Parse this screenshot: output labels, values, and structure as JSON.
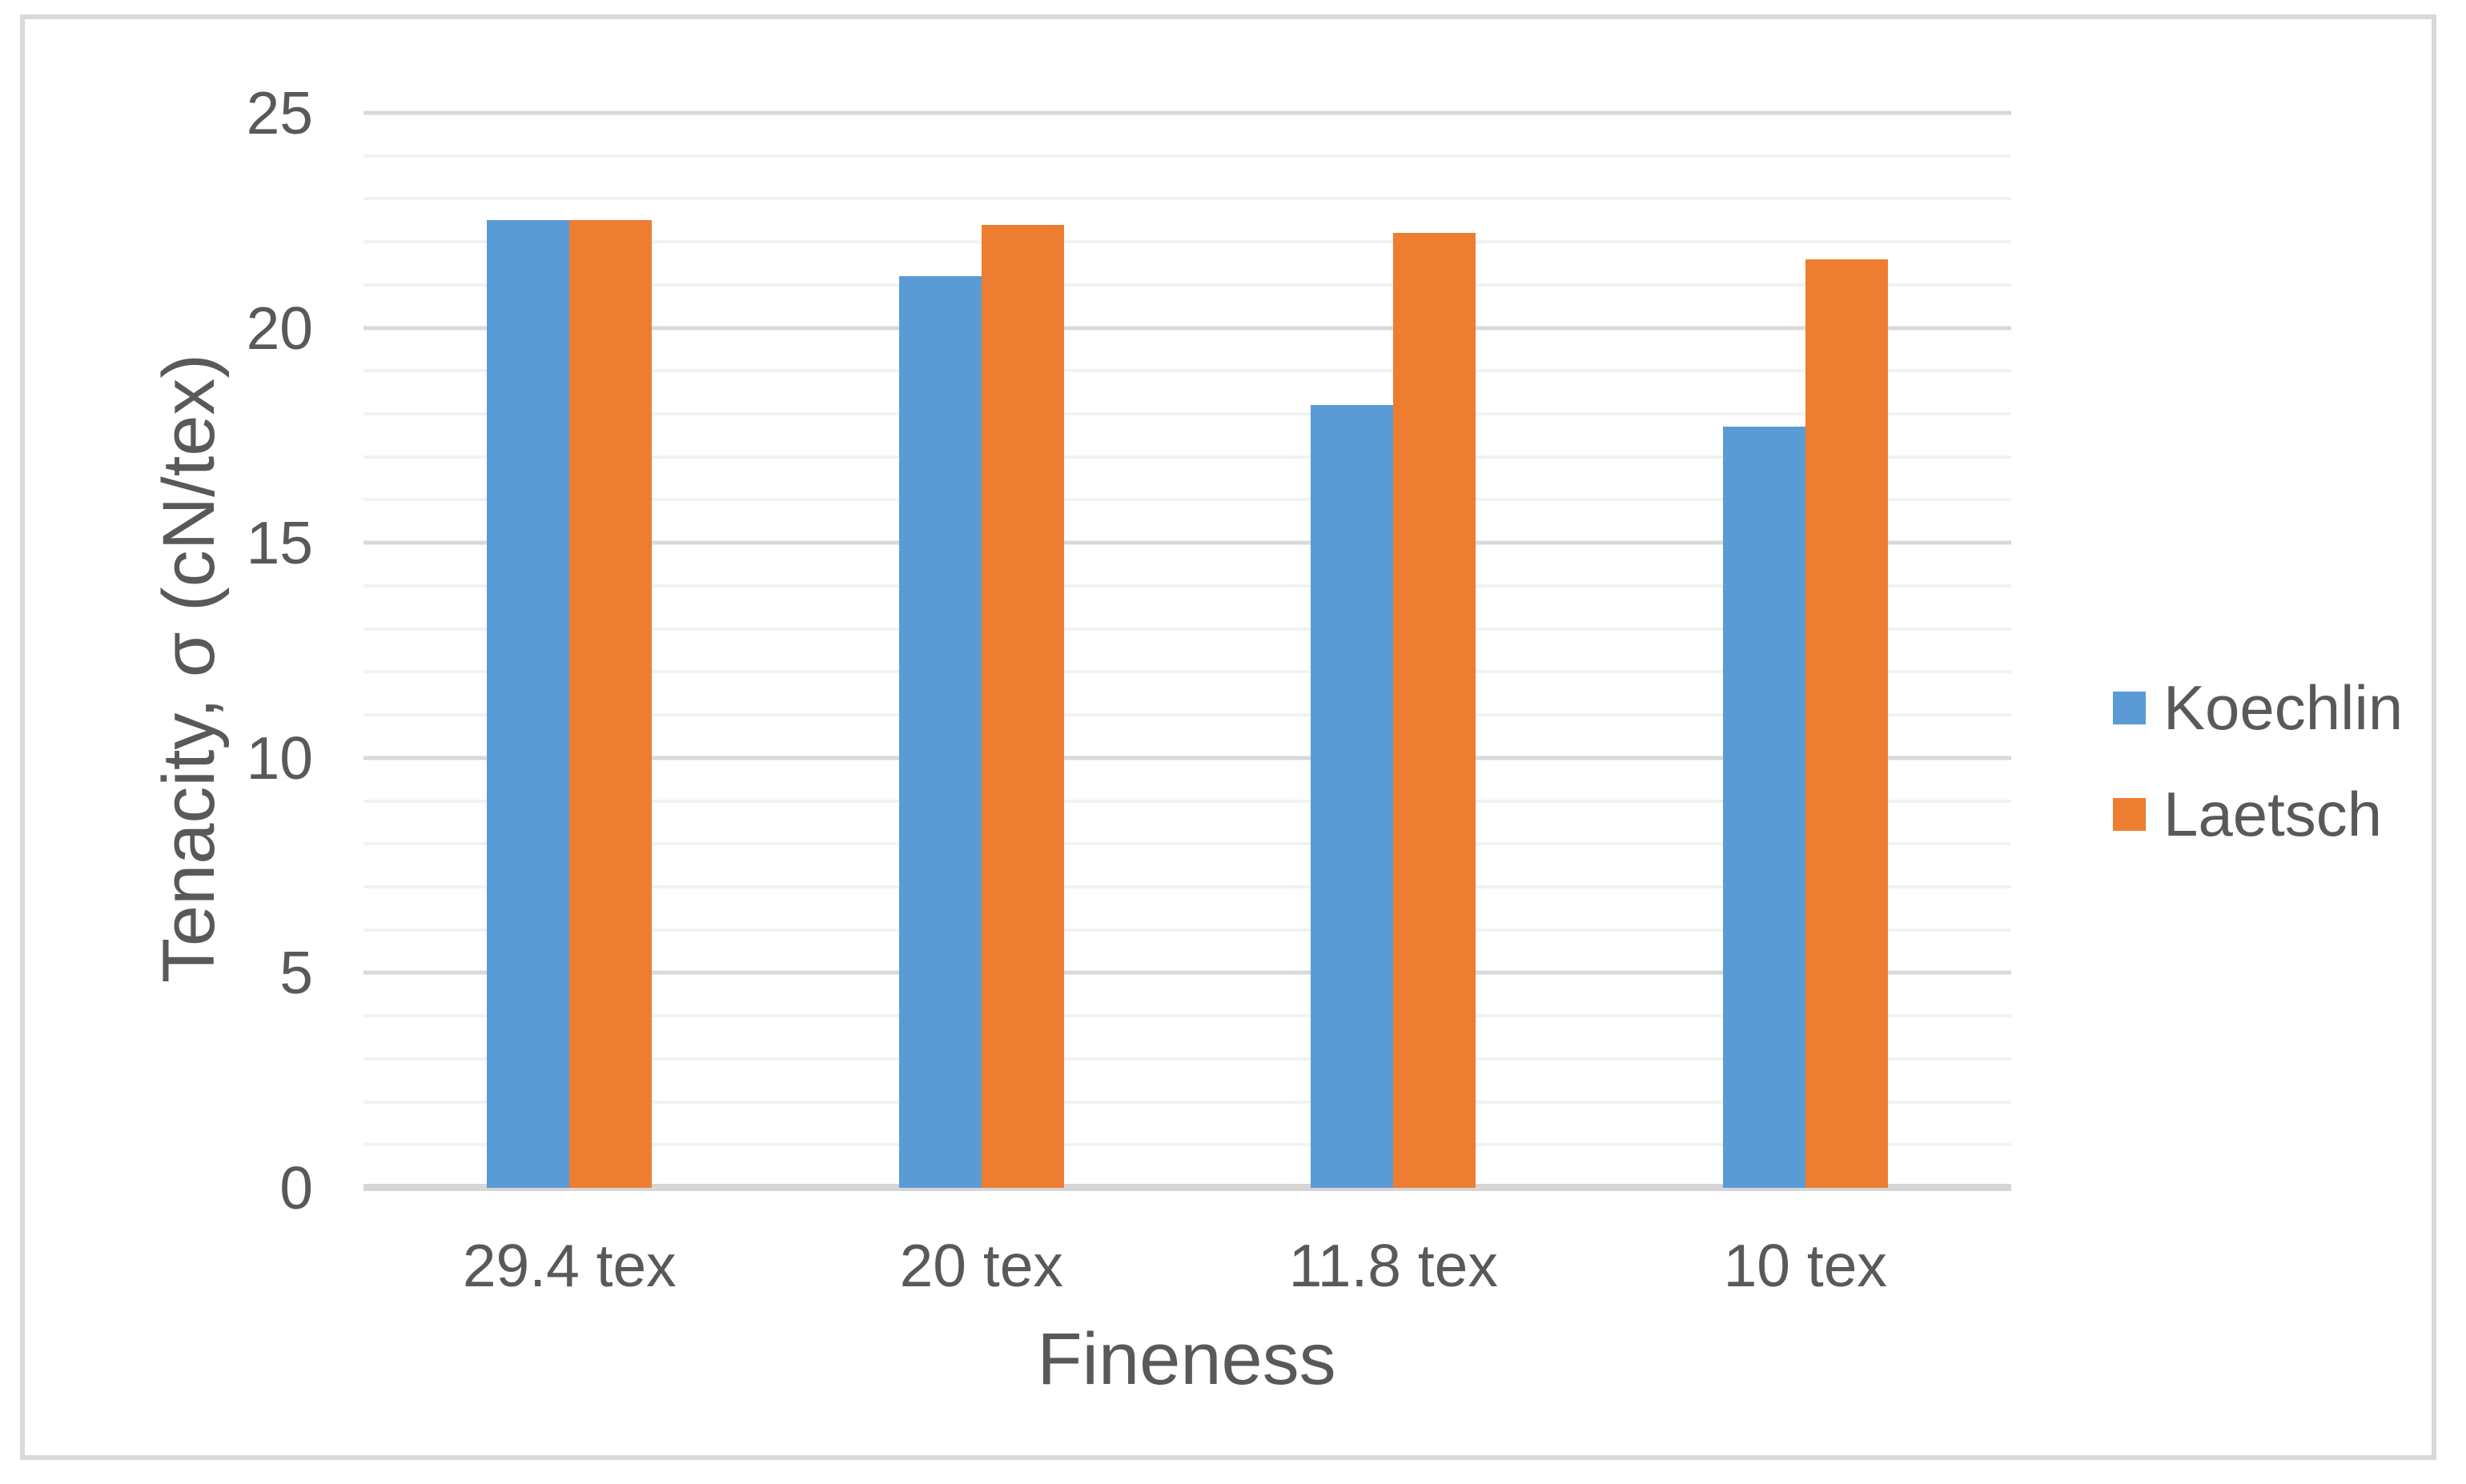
{
  "chart_data": {
    "type": "bar",
    "title": "",
    "categories": [
      "29.4 tex",
      "20 tex",
      "11.8 tex",
      "10 tex"
    ],
    "series": [
      {
        "name": "Koechlin",
        "color": "#5B9BD5",
        "values": [
          22.5,
          21.2,
          18.2,
          17.7
        ]
      },
      {
        "name": "Laetsch",
        "color": "#ED7D31",
        "values": [
          22.5,
          22.4,
          22.2,
          21.6
        ]
      }
    ],
    "xlabel": "Fineness",
    "ylabel": "Tenacity, σ (cN/tex)",
    "ylim": [
      0,
      25
    ],
    "yticks": [
      0,
      5,
      10,
      15,
      20,
      25
    ],
    "ytick_labels": [
      "0",
      "5",
      "10",
      "15",
      "20",
      "25"
    ],
    "minor_grid_step": 1,
    "major_grid_step": 5,
    "grid": "horizontal major+minor",
    "legend_position": "right-middle"
  },
  "colors": {
    "series_blue": "#5B9BD5",
    "series_orange": "#ED7D31",
    "text": "#595959",
    "major_gridline": "#D9D9D9",
    "minor_gridline": "#F2F2F2",
    "axis_line": "#D6D6D6",
    "frame_border": "#D9D9D9",
    "background": "#FFFFFF"
  },
  "legend": {
    "items": [
      {
        "label": "Koechlin",
        "color": "#5B9BD5"
      },
      {
        "label": "Laetsch",
        "color": "#ED7D31"
      }
    ]
  }
}
